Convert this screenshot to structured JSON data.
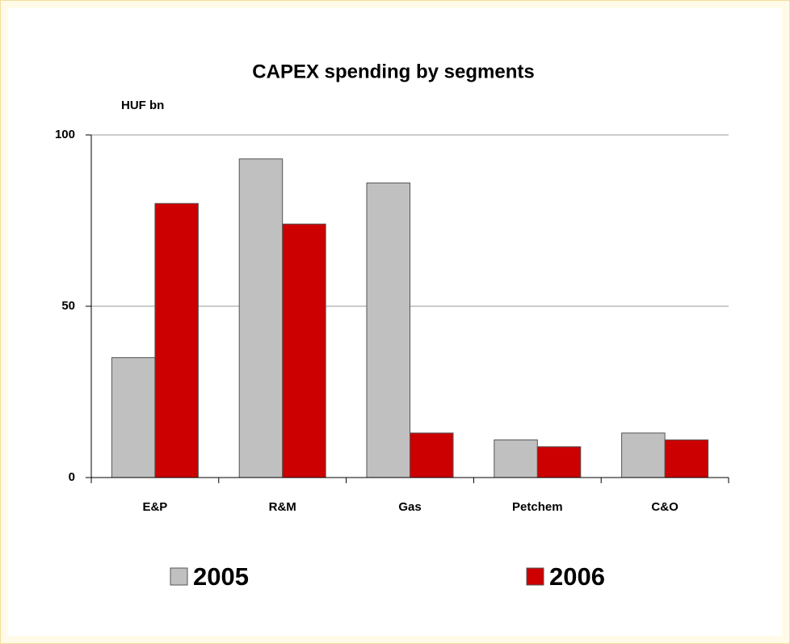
{
  "chart_data": {
    "type": "bar",
    "title": "CAPEX spending by segments",
    "y_label": "HUF bn",
    "categories": [
      "E&P",
      "R&M",
      "Gas",
      "Petchem",
      "C&O"
    ],
    "series": [
      {
        "name": "2005",
        "color": "#c0c0c0",
        "values": [
          35,
          93,
          86,
          11,
          13
        ]
      },
      {
        "name": "2006",
        "color": "#cc0000",
        "values": [
          80,
          74,
          13,
          9,
          11
        ]
      }
    ],
    "ylim": [
      0,
      100
    ],
    "yticks": [
      0,
      50,
      100
    ],
    "grid": true
  }
}
